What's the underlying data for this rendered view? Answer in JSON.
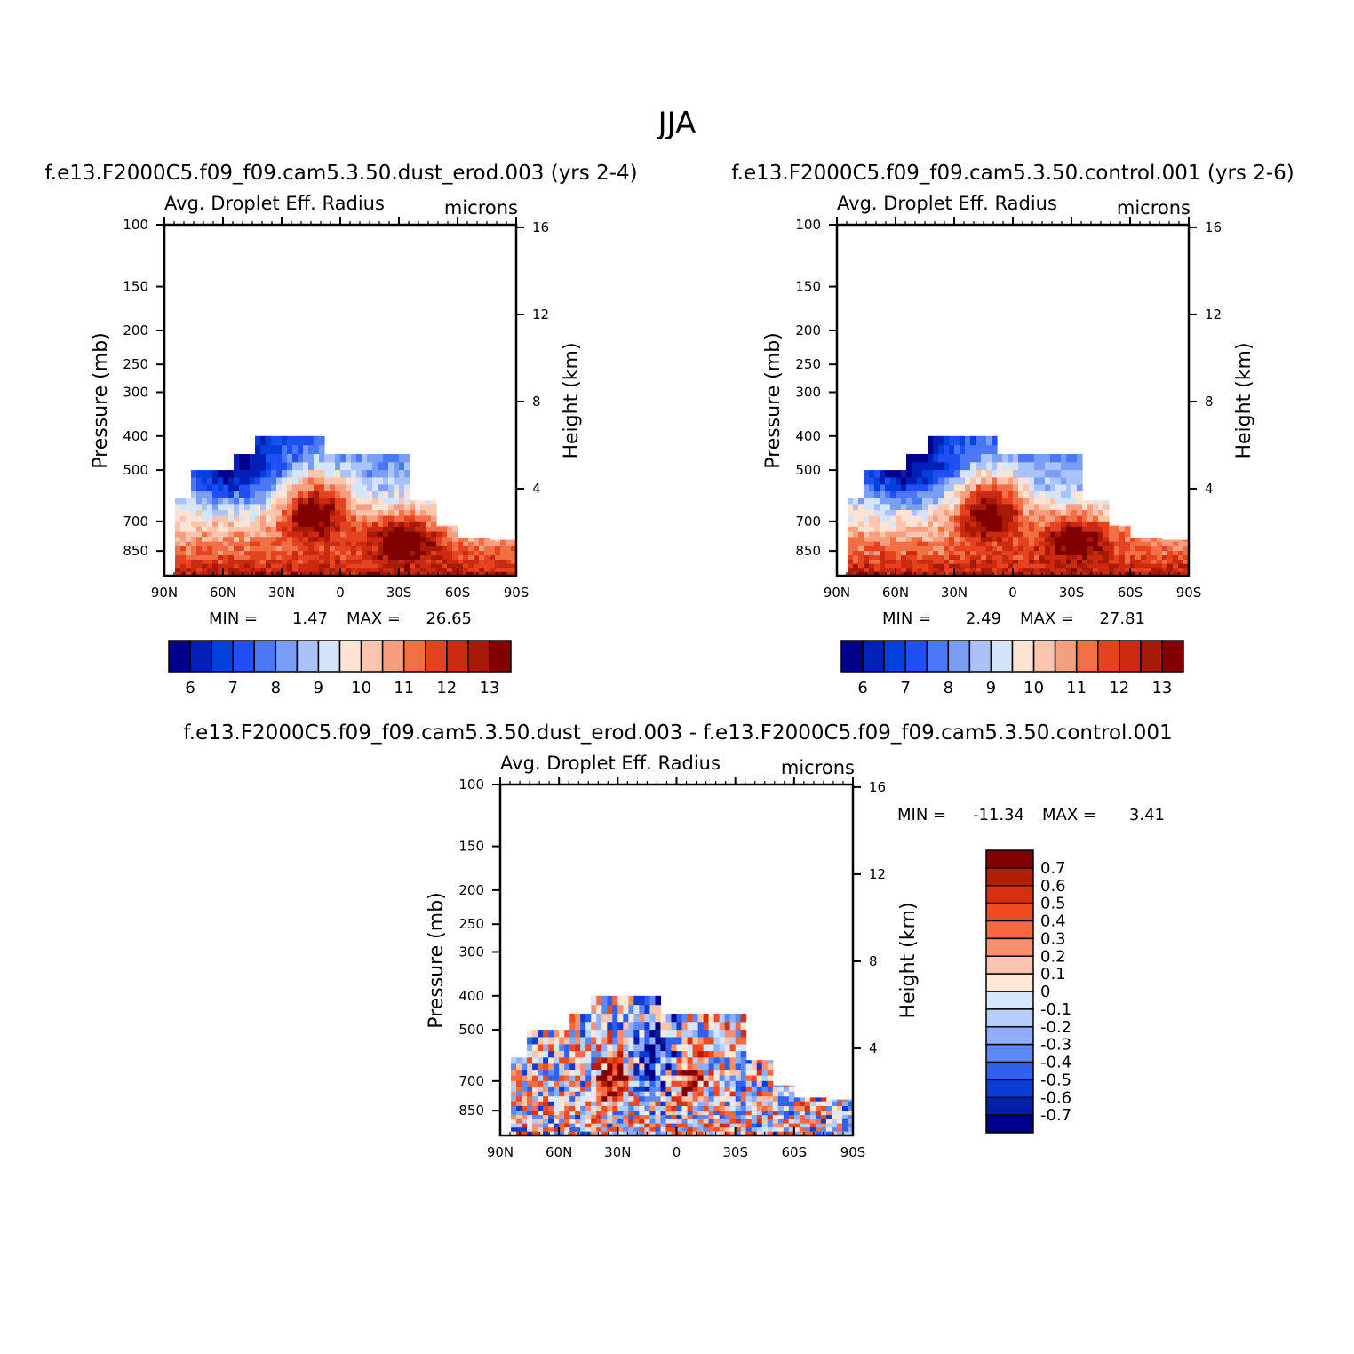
{
  "figure": {
    "suptitle": "JJA"
  },
  "chart_data": [
    {
      "type": "heatmap",
      "title": "f.e13.F2000C5.f09_f09.cam5.3.50.dust_erod.003 (yrs 2-4)",
      "variable": "Avg. Droplet Eff. Radius",
      "units": "microns",
      "xlabel": "",
      "ylabel": "Pressure (mb)",
      "ylabel_right": "Height (km)",
      "x_ticks": [
        "90N",
        "60N",
        "30N",
        "0",
        "30S",
        "60S",
        "90S"
      ],
      "y_ticks": [
        "100",
        "150",
        "200",
        "250",
        "300",
        "400",
        "500",
        "700",
        "850"
      ],
      "height_ticks": [
        "16",
        "12",
        "8",
        "4"
      ],
      "y_scale": "log",
      "min_label": "MIN =",
      "min_value": "1.47",
      "max_label": "MAX =",
      "max_value": "26.65",
      "colorbar_labels": [
        "6",
        "7",
        "8",
        "9",
        "10",
        "11",
        "12",
        "13"
      ],
      "colorbar_orientation": "horizontal",
      "colors": [
        "#00008b",
        "#0020b8",
        "#0040dd",
        "#2050f5",
        "#4a78f5",
        "#7a9ef5",
        "#a9c2f7",
        "#d4e4fb",
        "#fde3d3",
        "#fbc5ad",
        "#f69e80",
        "#f16f45",
        "#e54320",
        "#cc2a10",
        "#a81a08",
        "#800000"
      ]
    },
    {
      "type": "heatmap",
      "title": "f.e13.F2000C5.f09_f09.cam5.3.50.control.001 (yrs 2-6)",
      "variable": "Avg. Droplet Eff. Radius",
      "units": "microns",
      "xlabel": "",
      "ylabel": "Pressure (mb)",
      "ylabel_right": "Height (km)",
      "x_ticks": [
        "90N",
        "60N",
        "30N",
        "0",
        "30S",
        "60S",
        "90S"
      ],
      "y_ticks": [
        "100",
        "150",
        "200",
        "250",
        "300",
        "400",
        "500",
        "700",
        "850"
      ],
      "height_ticks": [
        "16",
        "12",
        "8",
        "4"
      ],
      "y_scale": "log",
      "min_label": "MIN =",
      "min_value": "2.49",
      "max_label": "MAX =",
      "max_value": "27.81",
      "colorbar_labels": [
        "6",
        "7",
        "8",
        "9",
        "10",
        "11",
        "12",
        "13"
      ],
      "colorbar_orientation": "horizontal",
      "colors": [
        "#00008b",
        "#0020b8",
        "#0040dd",
        "#2050f5",
        "#4a78f5",
        "#7a9ef5",
        "#a9c2f7",
        "#d4e4fb",
        "#fde3d3",
        "#fbc5ad",
        "#f69e80",
        "#f16f45",
        "#e54320",
        "#cc2a10",
        "#a81a08",
        "#800000"
      ]
    },
    {
      "type": "heatmap",
      "title": "f.e13.F2000C5.f09_f09.cam5.3.50.dust_erod.003 - f.e13.F2000C5.f09_f09.cam5.3.50.control.001",
      "variable": "Avg. Droplet Eff. Radius",
      "units": "microns",
      "xlabel": "",
      "ylabel": "Pressure (mb)",
      "ylabel_right": "Height (km)",
      "x_ticks": [
        "90N",
        "60N",
        "30N",
        "0",
        "30S",
        "60S",
        "90S"
      ],
      "y_ticks": [
        "100",
        "150",
        "200",
        "250",
        "300",
        "400",
        "500",
        "700",
        "850"
      ],
      "height_ticks": [
        "16",
        "12",
        "8",
        "4"
      ],
      "y_scale": "log",
      "min_label": "MIN =",
      "min_value": "-11.34",
      "max_label": "MAX =",
      "max_value": "3.41",
      "colorbar_labels": [
        "0.7",
        "0.6",
        "0.5",
        "0.4",
        "0.3",
        "0.2",
        "0.1",
        "0",
        "-0.1",
        "-0.2",
        "-0.3",
        "-0.4",
        "-0.5",
        "-0.6",
        "-0.7"
      ],
      "colorbar_orientation": "vertical",
      "colors": [
        "#800000",
        "#b01e08",
        "#d73010",
        "#f04a20",
        "#f56a40",
        "#f79070",
        "#fbc5ad",
        "#fde8d8",
        "#d6e6fb",
        "#b6cdf7",
        "#8eaef5",
        "#5e88f5",
        "#3060ee",
        "#0d3bd6",
        "#0520a8",
        "#00008b"
      ]
    }
  ]
}
